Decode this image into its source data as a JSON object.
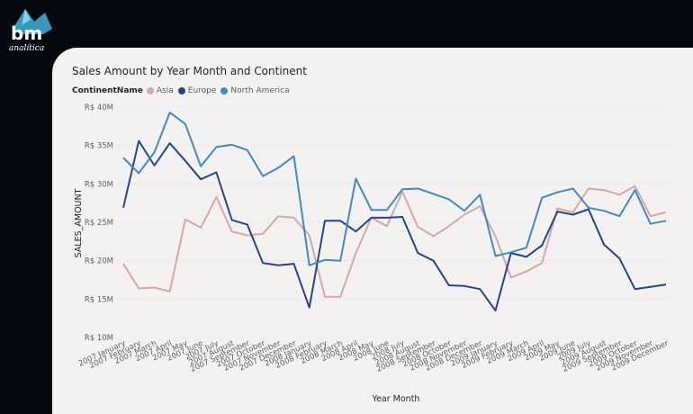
{
  "brand": {
    "logo_text": "bm",
    "logo_subtext": "analítica"
  },
  "colors": {
    "background": "#05090f",
    "card": "#f3f2f1",
    "asia": "#d6a6a8",
    "europe": "#21468f",
    "north_america": "#3b8bc6"
  },
  "chart_data": {
    "type": "line",
    "title": "Sales Amount by Year Month and Continent",
    "legend_title": "ContinentName",
    "legend_position": "top-left",
    "xlabel": "Year Month",
    "ylabel": "SALES_AMOUNT",
    "ylim": [
      10,
      40
    ],
    "yticks": [
      10,
      15,
      20,
      25,
      30,
      35,
      40
    ],
    "ytick_labels": [
      "R$ 10M",
      "R$ 15M",
      "R$ 20M",
      "R$ 25M",
      "R$ 30M",
      "R$ 35M",
      "R$ 40M"
    ],
    "grid": true,
    "categories": [
      "2007 January",
      "2007 February",
      "2007 March",
      "2007 April",
      "2007 May",
      "2007 June",
      "2007 July",
      "2007 August",
      "2007 September",
      "2007 October",
      "2007 November",
      "2007 December",
      "2008 January",
      "2008 February",
      "2008 March",
      "2008 April",
      "2008 May",
      "2008 June",
      "2008 July",
      "2008 August",
      "2008 September",
      "2008 October",
      "2008 November",
      "2008 December",
      "2009 January",
      "2009 February",
      "2009 March",
      "2009 April",
      "2009 May",
      "2009 June",
      "2009 July",
      "2009 August",
      "2009 September",
      "2009 October",
      "2009 November",
      "2009 December"
    ],
    "series": [
      {
        "name": "Asia",
        "values": [
          19.6,
          16.4,
          16.5,
          16.0,
          25.4,
          24.3,
          28.3,
          23.8,
          23.3,
          23.5,
          25.8,
          25.6,
          23.3,
          15.3,
          15.3,
          21.0,
          25.6,
          24.5,
          29.0,
          24.4,
          23.2,
          24.5,
          26.0,
          27.1,
          23.2,
          17.8,
          18.6,
          19.7,
          26.8,
          26.3,
          29.4,
          29.2,
          28.6,
          29.7,
          25.8,
          26.3
        ]
      },
      {
        "name": "Europe",
        "values": [
          26.9,
          35.6,
          32.4,
          35.3,
          33.0,
          30.6,
          31.5,
          25.3,
          24.7,
          19.7,
          19.4,
          19.6,
          13.9,
          25.2,
          25.2,
          23.8,
          25.6,
          25.6,
          25.7,
          21.0,
          20.0,
          16.8,
          16.7,
          16.3,
          13.5,
          21.0,
          20.5,
          22.0,
          26.4,
          26.0,
          26.7,
          22.1,
          20.3,
          16.3,
          16.6,
          16.9
        ]
      },
      {
        "name": "North America",
        "values": [
          33.4,
          31.4,
          34.1,
          39.3,
          37.8,
          32.3,
          34.8,
          35.1,
          34.4,
          31.0,
          32.1,
          33.6,
          19.4,
          20.1,
          20.0,
          30.7,
          26.6,
          26.6,
          29.3,
          29.4,
          28.7,
          28.0,
          26.5,
          28.6,
          20.6,
          21.1,
          21.7,
          28.2,
          28.9,
          29.4,
          26.9,
          26.5,
          25.8,
          29.2,
          24.8,
          25.2
        ]
      }
    ]
  }
}
